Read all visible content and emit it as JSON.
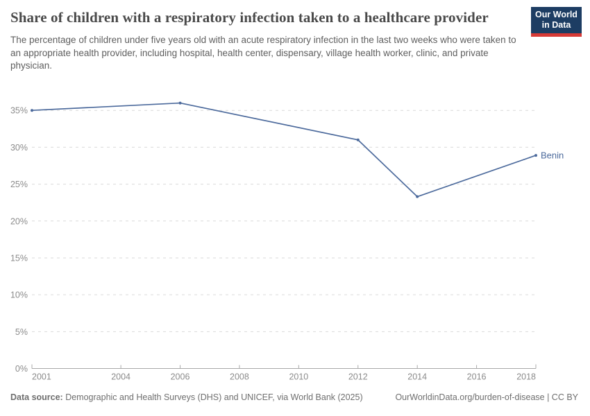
{
  "header": {
    "title": "Share of children with a respiratory infection taken to a healthcare provider",
    "subtitle": "The percentage of children under five years old with an acute respiratory infection in the last two weeks who were taken to an appropriate health provider, including hospital, health center, dispensary, village health worker, clinic, and private physician.",
    "logo": {
      "line1": "Our World",
      "line2": "in Data",
      "bg_color": "#1d3d63",
      "accent_color": "#d73a36"
    }
  },
  "chart_data": {
    "type": "line",
    "title": "Share of children with a respiratory infection taken to a healthcare provider",
    "series": [
      {
        "name": "Benin",
        "color": "#4c6a9c",
        "x": [
          2001,
          2006,
          2012,
          2014,
          2018
        ],
        "values": [
          35,
          36,
          31,
          23.3,
          28.9
        ]
      }
    ],
    "end_label": "Benin",
    "x_ticks": [
      2001,
      2004,
      2006,
      2008,
      2010,
      2012,
      2014,
      2016,
      2018
    ],
    "y_ticks": [
      0,
      5,
      10,
      15,
      20,
      25,
      30,
      35
    ],
    "y_tick_suffix": "%",
    "xlim": [
      2001,
      2018
    ],
    "ylim": [
      0,
      36.5
    ],
    "xlabel": "",
    "ylabel": "",
    "grid": "horizontal-dashed",
    "legend_position": "end-of-line"
  },
  "style_colors": {
    "line": "#4c6a9c",
    "gridline": "#d9d9d9",
    "axis": "#a8a8a8",
    "tick_label": "#8b8b8b"
  },
  "footer": {
    "data_source_label": "Data source:",
    "data_source_value": " Demographic and Health Surveys (DHS) and UNICEF, via World Bank (2025)",
    "link": "OurWorldinData.org/burden-of-disease | CC BY"
  }
}
